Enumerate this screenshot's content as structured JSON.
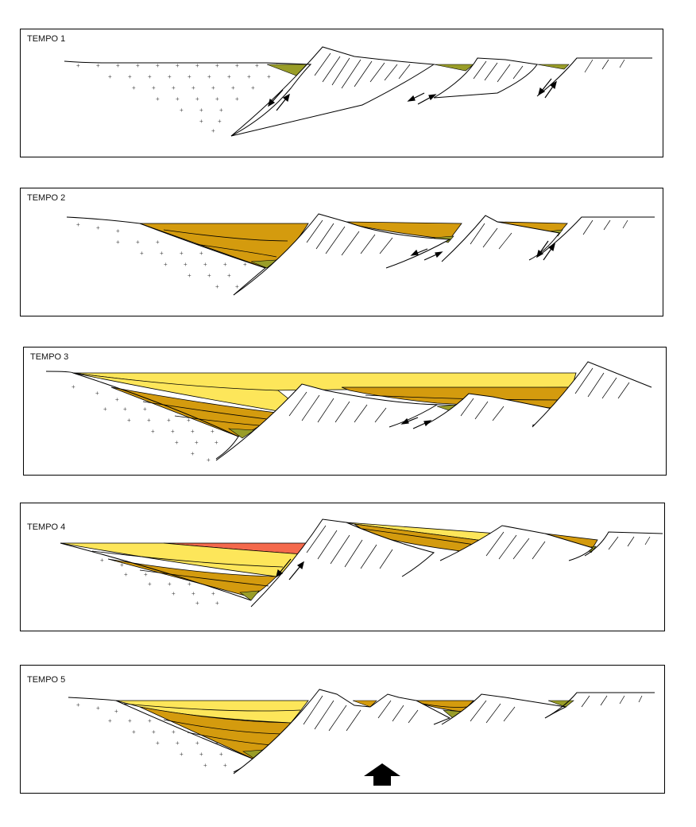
{
  "panels": [
    {
      "label": "TEMPO 1"
    },
    {
      "label": "TEMPO 2"
    },
    {
      "label": "TEMPO 3"
    },
    {
      "label": "TEMPO 4"
    },
    {
      "label": "TEMPO 5"
    }
  ],
  "colors": {
    "olive": "#999d28",
    "ochre": "#d49b0e",
    "yellow": "#fde65a",
    "red": "#f4694c",
    "line": "#000000",
    "paper": "#ffffff"
  },
  "symbols": {
    "basement_pattern": "plus-cross",
    "fault_blocks": "hatched",
    "motion_arrows": "arrow-pairs",
    "uplift": "up-arrow"
  }
}
